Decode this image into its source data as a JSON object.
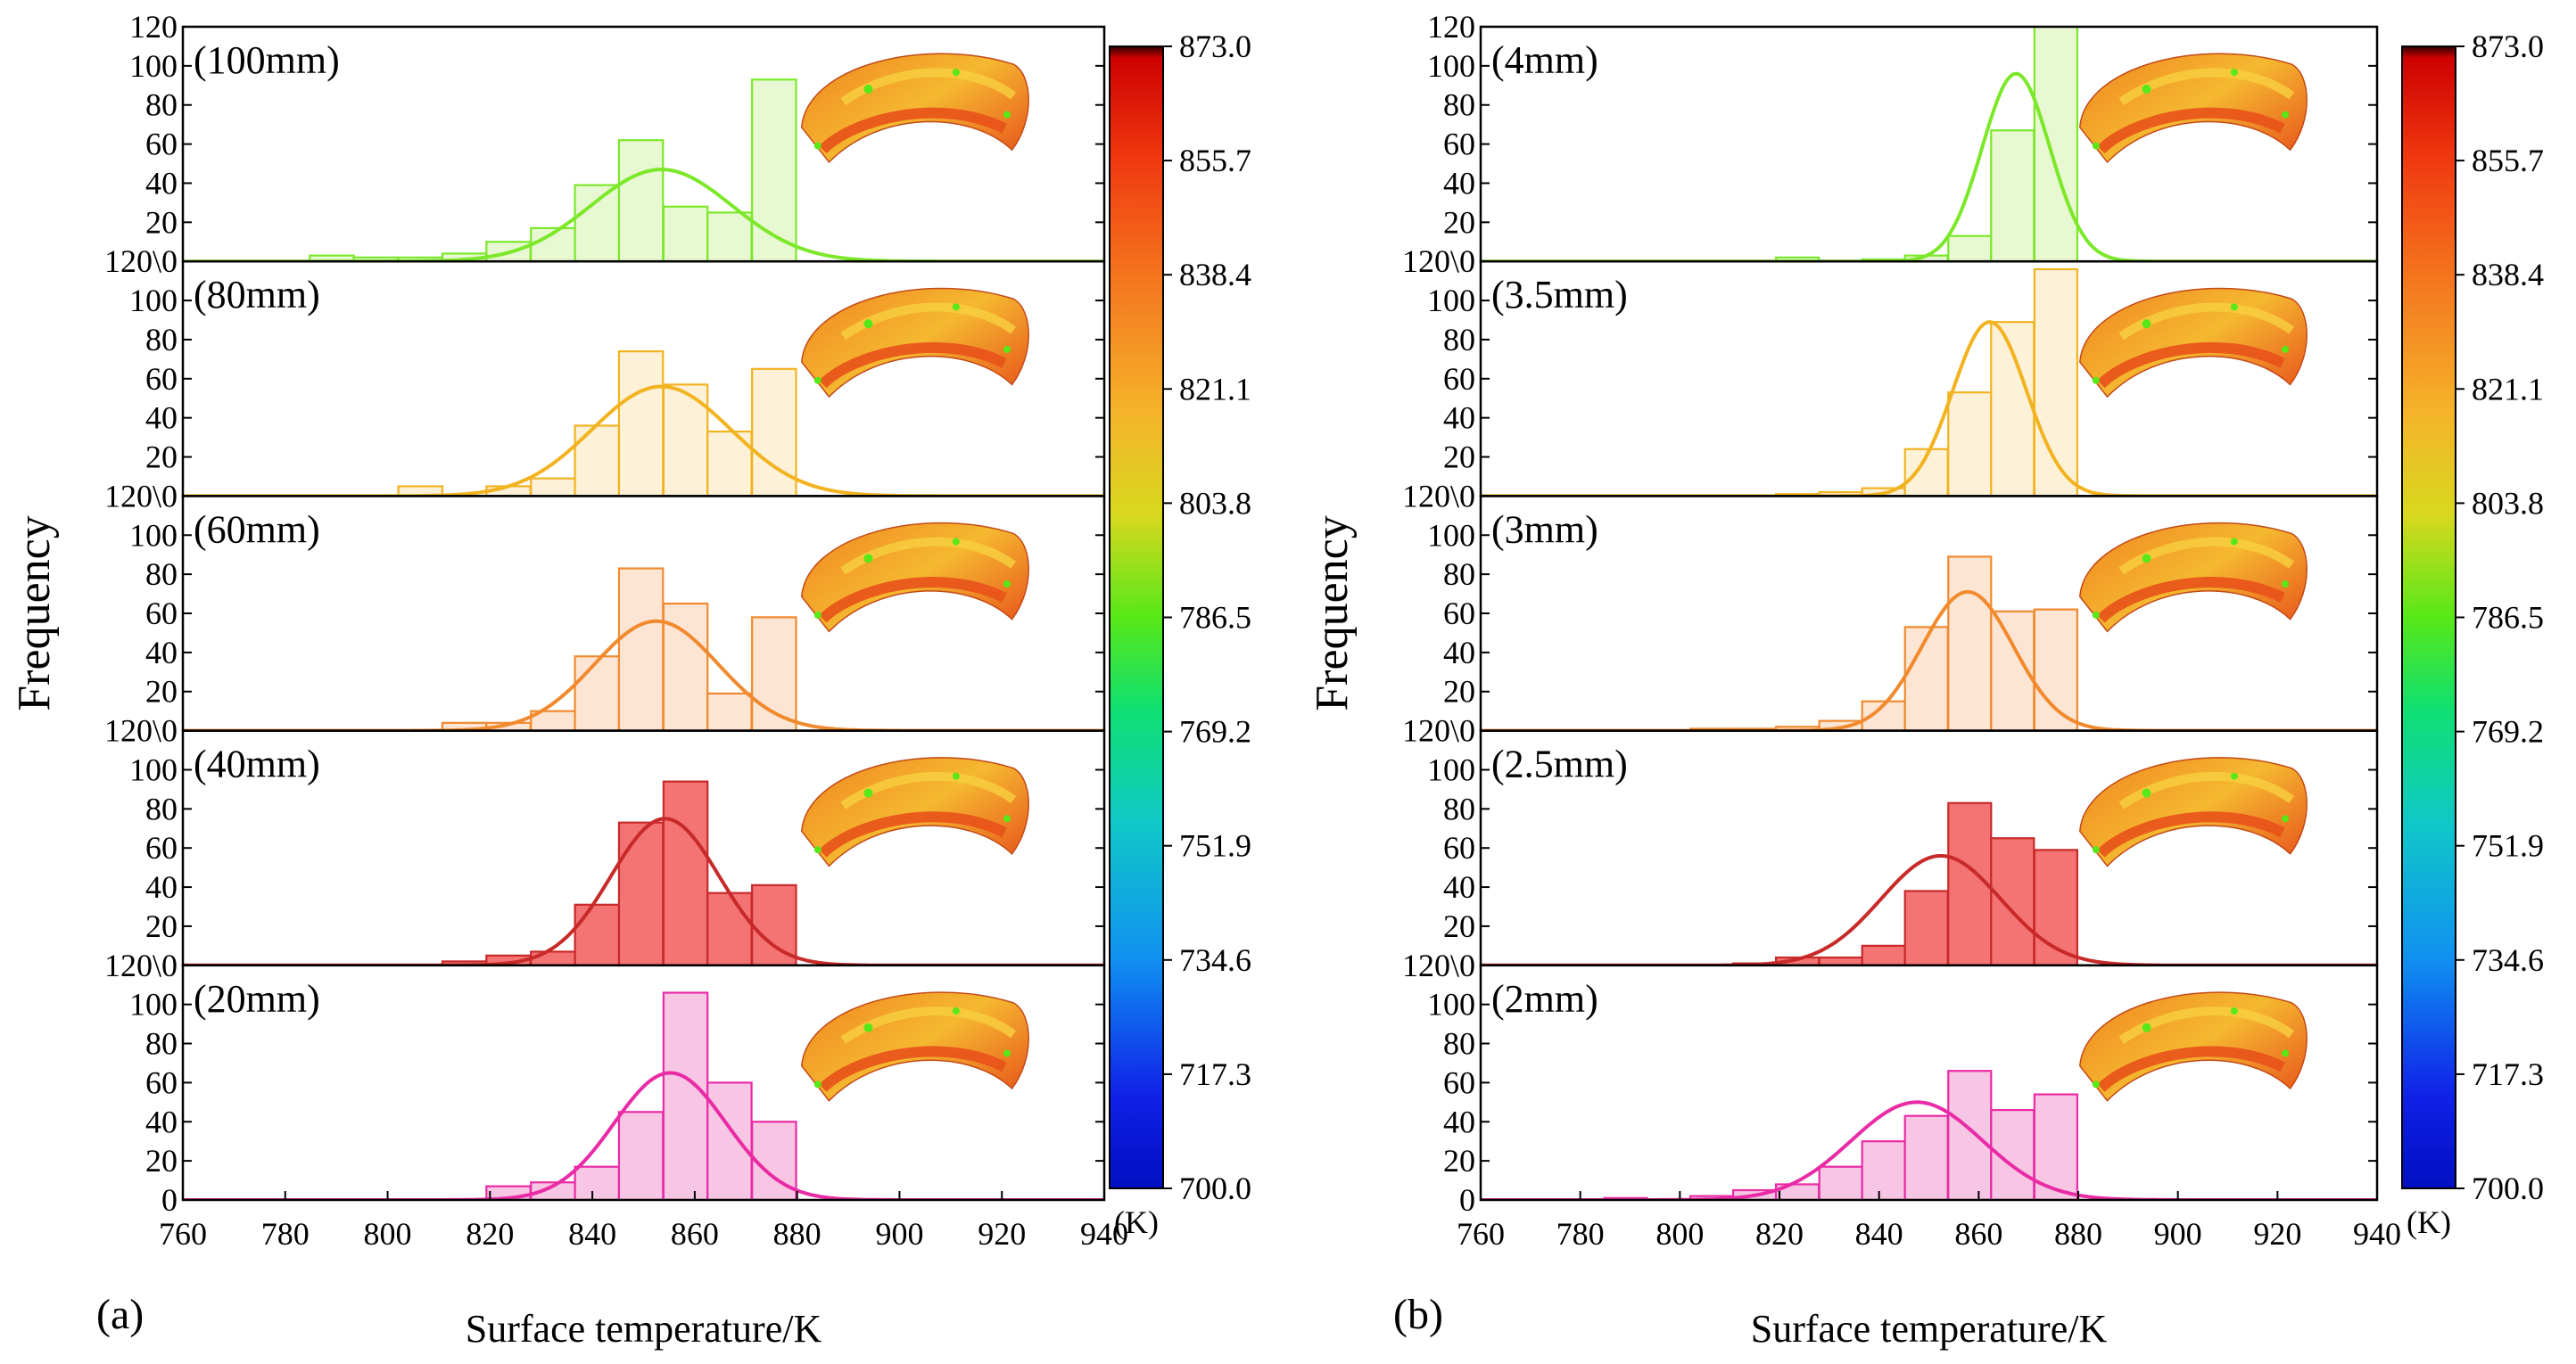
{
  "chart_data": [
    {
      "type": "histogram",
      "panel_label": "(a)",
      "xlabel": "Surface temperature/K",
      "ylabel": "Frequency",
      "xlim": [
        760,
        940
      ],
      "ylim": [
        0,
        120
      ],
      "x_ticks": [
        "760",
        "780",
        "800",
        "820",
        "840",
        "860",
        "880",
        "900",
        "920",
        "940"
      ],
      "y_ticks": [
        "0",
        "20",
        "40",
        "60",
        "80",
        "100",
        "120"
      ],
      "row_top_tick": "120\\0",
      "bin_edges": [
        767.5,
        776.1,
        784.8,
        793.4,
        802.1,
        810.7,
        819.3,
        828.0,
        836.6,
        845.2,
        853.9,
        862.5,
        871.2
      ],
      "subplots": [
        {
          "label": "(100mm)",
          "color": "#7ce829",
          "fill": "#e7f8d3",
          "values": [
            0,
            0,
            3,
            2,
            2,
            4,
            10,
            17,
            39,
            62,
            28,
            25,
            93
          ],
          "fit": {
            "mean": 853.5,
            "amp": 47,
            "sd": 13.8
          }
        },
        {
          "label": "(80mm)",
          "color": "#f2b320",
          "fill": "#fdf1d8",
          "values": [
            0,
            0,
            0,
            0,
            5,
            0,
            5,
            9,
            36,
            74,
            57,
            33,
            65
          ],
          "fit": {
            "mean": 853.5,
            "amp": 56,
            "sd": 13.6
          }
        },
        {
          "label": "(60mm)",
          "color": "#f18a2e",
          "fill": "#fde5d4",
          "values": [
            0,
            0,
            0,
            0,
            0,
            4,
            4,
            10,
            38,
            83,
            65,
            19,
            58
          ],
          "fit": {
            "mean": 852.5,
            "amp": 56,
            "sd": 12.1
          }
        },
        {
          "label": "(40mm)",
          "color": "#c82a2a",
          "fill": "#f47373",
          "values": [
            0,
            0,
            0,
            0,
            0,
            2,
            5,
            7,
            31,
            73,
            94,
            37,
            41
          ],
          "fit": {
            "mean": 854.2,
            "amp": 75,
            "sd": 10.6
          }
        },
        {
          "label": "(20mm)",
          "color": "#e92ba5",
          "fill": "#f7c6e5",
          "values": [
            0,
            0,
            0,
            0,
            0,
            0,
            7,
            9,
            17,
            45,
            106,
            60,
            40
          ],
          "fit": {
            "mean": 855.2,
            "amp": 65,
            "sd": 10.9
          }
        }
      ],
      "colorbar": {
        "unit": "(K)",
        "ticks": [
          "873.0",
          "855.7",
          "838.4",
          "821.1",
          "803.8",
          "786.5",
          "769.2",
          "751.9",
          "734.6",
          "717.3",
          "700.0"
        ]
      }
    },
    {
      "type": "histogram",
      "panel_label": "(b)",
      "xlabel": "Surface temperature/K",
      "ylabel": "Frequency",
      "xlim": [
        760,
        940
      ],
      "ylim": [
        0,
        120
      ],
      "x_ticks": [
        "760",
        "780",
        "800",
        "820",
        "840",
        "860",
        "880",
        "900",
        "920",
        "940"
      ],
      "y_ticks": [
        "0",
        "20",
        "40",
        "60",
        "80",
        "100",
        "120"
      ],
      "row_top_tick": "120\\0",
      "bin_edges": [
        767.5,
        776.1,
        784.8,
        793.4,
        802.1,
        810.7,
        819.3,
        828.0,
        836.6,
        845.2,
        853.9,
        862.5,
        871.2
      ],
      "subplots": [
        {
          "label": "(4mm)",
          "color": "#7ce829",
          "fill": "#e7f8d3",
          "values": [
            0,
            0,
            0,
            0,
            0,
            0,
            2,
            0,
            1,
            3,
            13,
            67,
            121
          ],
          "fit": {
            "mean": 867.5,
            "amp": 96,
            "sd": 6.8
          }
        },
        {
          "label": "(3.5mm)",
          "color": "#f2b320",
          "fill": "#fdf1d8",
          "values": [
            0,
            0,
            0,
            0,
            0,
            0,
            1,
            2,
            4,
            24,
            53,
            89,
            116
          ],
          "fit": {
            "mean": 862.2,
            "amp": 89,
            "sd": 7.4
          }
        },
        {
          "label": "(3mm)",
          "color": "#f18a2e",
          "fill": "#fde5d4",
          "values": [
            0,
            0,
            0,
            0,
            1,
            1,
            2,
            5,
            15,
            53,
            89,
            61,
            62
          ],
          "fit": {
            "mean": 857.8,
            "amp": 71,
            "sd": 9.2
          }
        },
        {
          "label": "(2.5mm)",
          "color": "#c82a2a",
          "fill": "#f47373",
          "values": [
            0,
            0,
            0,
            0,
            0,
            1,
            4,
            4,
            10,
            38,
            83,
            65,
            59
          ],
          "fit": {
            "mean": 852.4,
            "amp": 56,
            "sd": 12.0
          }
        },
        {
          "label": "(2mm)",
          "color": "#e92ba5",
          "fill": "#f7c6e5",
          "values": [
            0,
            0,
            1,
            0,
            2,
            5,
            8,
            17,
            30,
            43,
            66,
            46,
            54
          ],
          "fit": {
            "mean": 847.6,
            "amp": 50,
            "sd": 13.2
          }
        }
      ],
      "colorbar": {
        "unit": "(K)",
        "ticks": [
          "873.0",
          "855.7",
          "838.4",
          "821.1",
          "803.8",
          "786.5",
          "769.2",
          "751.9",
          "734.6",
          "717.3",
          "700.0"
        ]
      }
    }
  ]
}
